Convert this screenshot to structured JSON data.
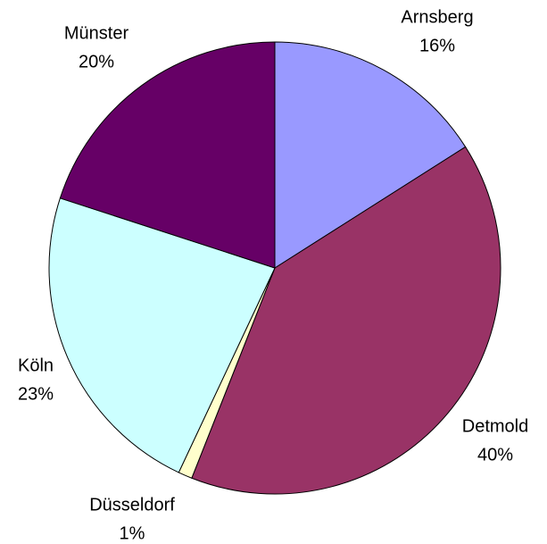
{
  "chart_data": {
    "type": "pie",
    "categories": [
      "Arnsberg",
      "Detmold",
      "Düsseldorf",
      "Köln",
      "Münster"
    ],
    "values": [
      16,
      40,
      1,
      23,
      20
    ],
    "value_labels": [
      "16%",
      "40%",
      "1%",
      "23%",
      "20%"
    ],
    "colors": [
      "#9999ff",
      "#993366",
      "#ffffcc",
      "#ccffff",
      "#660066"
    ]
  }
}
